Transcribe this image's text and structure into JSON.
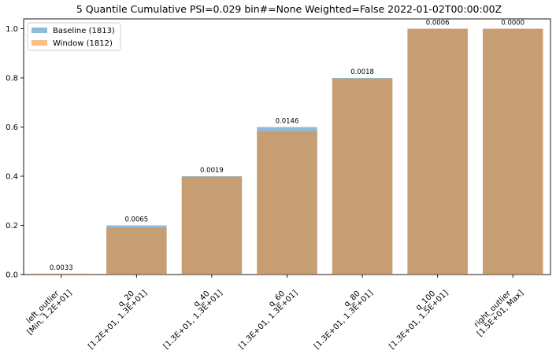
{
  "chart_data": {
    "type": "bar",
    "title": "5 Quantile Cumulative PSI=0.029 bin#=None Weighted=False 2022-01-02T00:00:00Z",
    "xlabel": "",
    "ylabel": "",
    "ylim": [
      0,
      1.04
    ],
    "yticks": [
      "0.0",
      "0.2",
      "0.4",
      "0.6",
      "0.8",
      "1.0"
    ],
    "yticks_values": [
      0,
      0.2,
      0.4,
      0.6,
      0.8,
      1.0
    ],
    "grid": false,
    "legend_position": "top-left",
    "categories": [
      [
        "left_outlier",
        "[Min, 1.2E+01]"
      ],
      [
        "q_20",
        "[1.2E+01, 1.3E+01]"
      ],
      [
        "q_40",
        "[1.3E+01, 1.3E+01]"
      ],
      [
        "q_60",
        "[1.3E+01, 1.3E+01]"
      ],
      [
        "q_80",
        "[1.3E+01, 1.3E+01]"
      ],
      [
        "q_100",
        "[1.3E+01, 1.5E+01]"
      ],
      [
        "right_outlier",
        "[1.5E+01, Max]"
      ]
    ],
    "series": [
      {
        "name": "Baseline (1813)",
        "color": "#1f77b4",
        "opacity": 0.5,
        "values": [
          0.002,
          0.2,
          0.4,
          0.6,
          0.8,
          1.0,
          1.0
        ]
      },
      {
        "name": "Window (1812)",
        "color": "#ff7f0e",
        "opacity": 0.5,
        "values": [
          0.004,
          0.19,
          0.398,
          0.583,
          0.797,
          1.0,
          1.0
        ]
      }
    ],
    "data_labels": [
      "0.0033",
      "0.0065",
      "0.0019",
      "0.0146",
      "0.0018",
      "0.0006",
      "0.0000"
    ]
  }
}
